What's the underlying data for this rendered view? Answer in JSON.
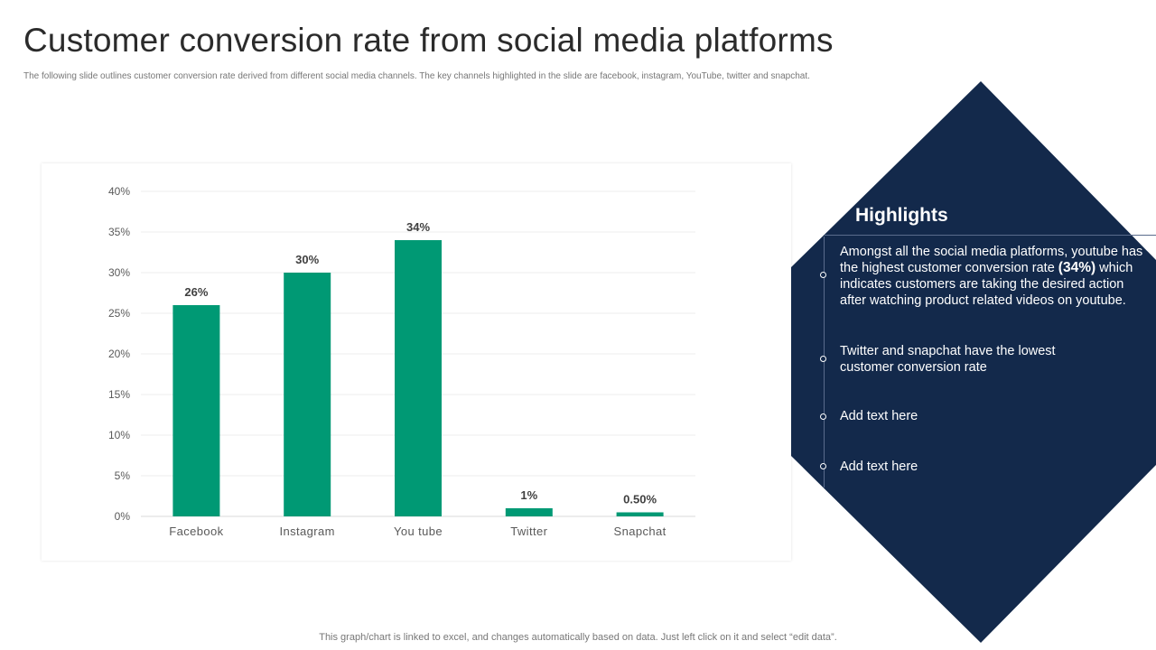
{
  "header": {
    "title": "Customer conversion rate from social media platforms",
    "subtitle": "The following slide outlines customer conversion rate derived from different social media channels. The key channels highlighted in the slide are facebook, instagram, YouTube, twitter and snapchat."
  },
  "chart_data": {
    "type": "bar",
    "categories": [
      "Facebook",
      "Instagram",
      "You tube",
      "Twitter",
      "Snapchat"
    ],
    "values": [
      26,
      30,
      34,
      1,
      0.5
    ],
    "data_labels": [
      "26%",
      "30%",
      "34%",
      "1%",
      "0.50%"
    ],
    "yticks": [
      "0%",
      "5%",
      "10%",
      "15%",
      "20%",
      "25%",
      "30%",
      "35%",
      "40%"
    ],
    "ylim": [
      0,
      40
    ],
    "ytick_step": 5,
    "grid": true,
    "title": "",
    "xlabel": "",
    "ylabel": "",
    "bar_color": "#009974"
  },
  "highlights": {
    "title": "Highlights",
    "panel_color": "#13294b",
    "items": [
      {
        "text_before": "Amongst all the social media platforms, youtube has the highest customer conversion rate ",
        "emphasis": "(34%)",
        "text_after": " which indicates customers are taking the desired action after watching product related videos on youtube."
      },
      {
        "text": "Twitter and snapchat have the lowest customer conversion rate"
      },
      {
        "text": "Add text here"
      },
      {
        "text": "Add text here"
      }
    ]
  },
  "footer": {
    "note": "This graph/chart is linked to excel, and changes automatically based on data. Just left click on it and select “edit data”."
  }
}
